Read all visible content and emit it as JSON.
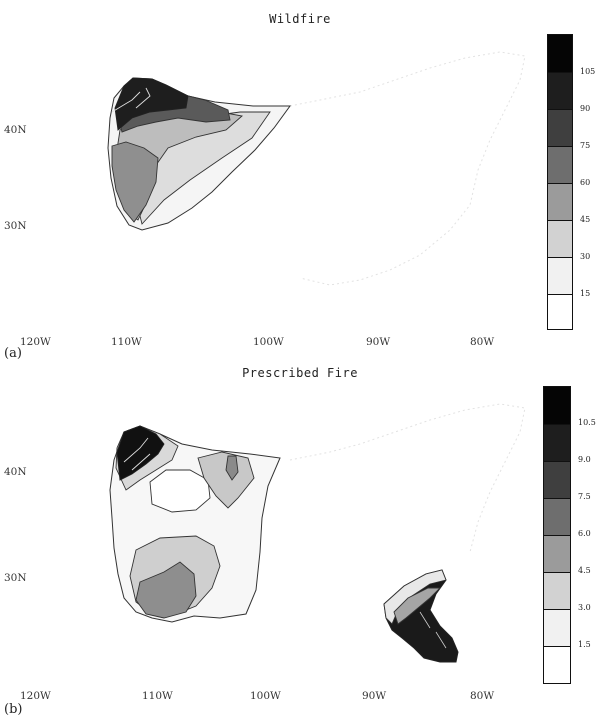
{
  "panels": [
    {
      "label": "(a)",
      "title": "Wildfire",
      "lat_labels": [
        "40N",
        "30N"
      ],
      "lon_labels": [
        "120W",
        "110W",
        "100W",
        "90W",
        "80W"
      ],
      "colorbar": [
        "105",
        "90",
        "75",
        "60",
        "45",
        "30",
        "15"
      ]
    },
    {
      "label": "(b)",
      "title": "Prescribed Fire",
      "lat_labels": [
        "40N",
        "30N"
      ],
      "lon_labels": [
        "120W",
        "110W",
        "100W",
        "90W",
        "80W"
      ],
      "colorbar": [
        "10.5",
        "9.0",
        "7.5",
        "6.0",
        "4.5",
        "3.0",
        "1.5"
      ]
    }
  ],
  "colors": {
    "shades": [
      "#ffffff",
      "#f1f1f1",
      "#d2d2d2",
      "#9b9b9b",
      "#6e6e6e",
      "#3f3f3f",
      "#1e1e1e",
      "#050505"
    ]
  }
}
